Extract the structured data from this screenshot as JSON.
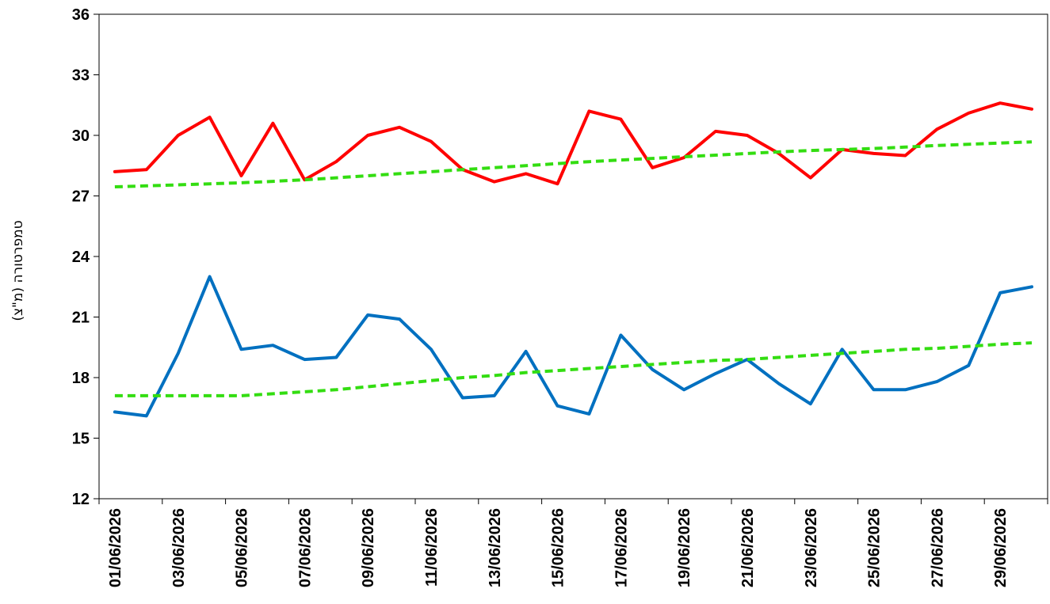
{
  "chart_data": {
    "type": "line",
    "title": "",
    "xlabel": "",
    "ylabel": "טמפרטורה (מ\"צ)",
    "ylim": [
      12,
      36
    ],
    "yticks": [
      12,
      15,
      18,
      21,
      24,
      27,
      30,
      33,
      36
    ],
    "grid": false,
    "legend": "none",
    "x": [
      "01/06/2026",
      "02/06/2026",
      "03/06/2026",
      "04/06/2026",
      "05/06/2026",
      "06/06/2026",
      "07/06/2026",
      "08/06/2026",
      "09/06/2026",
      "10/06/2026",
      "11/06/2026",
      "12/06/2026",
      "13/06/2026",
      "14/06/2026",
      "15/06/2026",
      "16/06/2026",
      "17/06/2026",
      "18/06/2026",
      "19/06/2026",
      "20/06/2026",
      "21/06/2026",
      "22/06/2026",
      "23/06/2026",
      "24/06/2026",
      "25/06/2026",
      "26/06/2026",
      "27/06/2026",
      "28/06/2026",
      "29/06/2026",
      "30/06/2026"
    ],
    "xtick_labels": [
      "01/06/2026",
      "03/06/2026",
      "05/06/2026",
      "07/06/2026",
      "09/06/2026",
      "11/06/2026",
      "13/06/2026",
      "15/06/2026",
      "17/06/2026",
      "19/06/2026",
      "21/06/2026",
      "23/06/2026",
      "25/06/2026",
      "27/06/2026",
      "29/06/2026"
    ],
    "series": [
      {
        "color": "#ff0000",
        "style": "solid",
        "values": [
          28.2,
          28.3,
          30.0,
          30.9,
          28.0,
          30.6,
          27.8,
          28.7,
          30.0,
          30.4,
          29.7,
          28.3,
          27.7,
          28.1,
          27.6,
          31.2,
          30.8,
          28.4,
          28.9,
          30.2,
          30.0,
          29.1,
          27.9,
          29.3,
          29.1,
          29.0,
          30.3,
          31.1,
          31.6,
          31.3
        ]
      },
      {
        "color": "#0070c0",
        "style": "solid",
        "values": [
          16.3,
          16.1,
          19.2,
          23.0,
          19.4,
          19.6,
          18.9,
          19.0,
          21.1,
          20.9,
          19.4,
          17.0,
          17.1,
          19.3,
          16.6,
          16.2,
          20.1,
          18.4,
          17.4,
          18.2,
          18.9,
          17.7,
          16.7,
          19.4,
          17.4,
          17.4,
          17.8,
          18.6,
          22.2,
          22.5
        ]
      },
      {
        "color": "#33dd11",
        "style": "dashed",
        "values": [
          27.45,
          27.5,
          27.55,
          27.6,
          27.65,
          27.72,
          27.8,
          27.9,
          28.0,
          28.1,
          28.2,
          28.3,
          28.4,
          28.5,
          28.6,
          28.7,
          28.78,
          28.86,
          28.94,
          29.02,
          29.1,
          29.18,
          29.25,
          29.3,
          29.35,
          29.42,
          29.5,
          29.56,
          29.62,
          29.68
        ]
      },
      {
        "color": "#33dd11",
        "style": "dashed",
        "values": [
          17.1,
          17.1,
          17.1,
          17.1,
          17.1,
          17.2,
          17.3,
          17.4,
          17.55,
          17.7,
          17.85,
          18.0,
          18.1,
          18.25,
          18.35,
          18.45,
          18.55,
          18.65,
          18.75,
          18.85,
          18.9,
          19.0,
          19.1,
          19.2,
          19.3,
          19.4,
          19.45,
          19.55,
          19.65,
          19.72
        ]
      }
    ]
  }
}
